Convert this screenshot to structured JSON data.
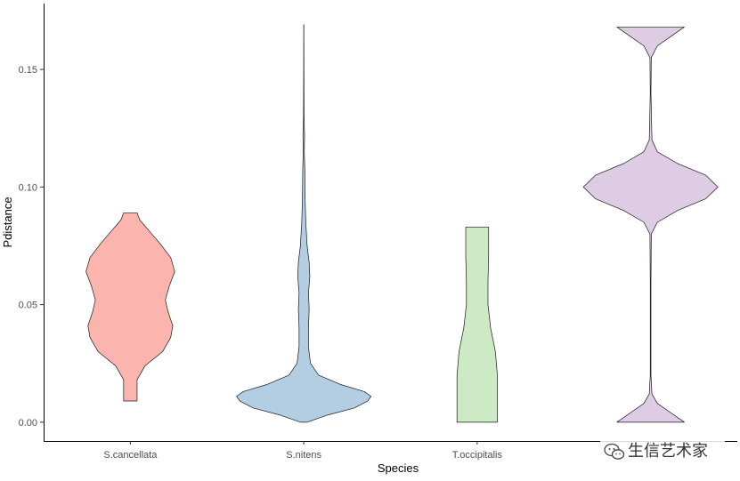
{
  "chart_data": {
    "type": "violin",
    "title": "",
    "xlabel": "Species",
    "ylabel": "Pdistance",
    "ylim": [
      -0.008,
      0.178
    ],
    "yticks": [
      0.0,
      0.05,
      0.1,
      0.15
    ],
    "ytick_labels": [
      "0.00",
      "0.05",
      "0.10",
      "0.15"
    ],
    "grid": false,
    "legend": "none",
    "categories": [
      "S.cancellata",
      "S.nitens",
      "T.occipitalis",
      ""
    ],
    "series": [
      {
        "color": "#FBB4AE",
        "min": 0.009,
        "max": 0.089,
        "profile": [
          [
            0.009,
            0.1
          ],
          [
            0.018,
            0.1
          ],
          [
            0.024,
            0.22
          ],
          [
            0.03,
            0.48
          ],
          [
            0.036,
            0.6
          ],
          [
            0.041,
            0.63
          ],
          [
            0.047,
            0.56
          ],
          [
            0.052,
            0.52
          ],
          [
            0.058,
            0.58
          ],
          [
            0.064,
            0.66
          ],
          [
            0.07,
            0.6
          ],
          [
            0.076,
            0.44
          ],
          [
            0.082,
            0.26
          ],
          [
            0.086,
            0.14
          ],
          [
            0.089,
            0.1
          ]
        ]
      },
      {
        "color": "#B3CDE3",
        "min": 0.0,
        "max": 0.169,
        "profile": [
          [
            0.0,
            0.05
          ],
          [
            0.003,
            0.35
          ],
          [
            0.006,
            0.75
          ],
          [
            0.009,
            0.95
          ],
          [
            0.011,
            1.0
          ],
          [
            0.013,
            0.9
          ],
          [
            0.016,
            0.55
          ],
          [
            0.02,
            0.22
          ],
          [
            0.025,
            0.1
          ],
          [
            0.032,
            0.07
          ],
          [
            0.04,
            0.07
          ],
          [
            0.048,
            0.08
          ],
          [
            0.055,
            0.07
          ],
          [
            0.062,
            0.09
          ],
          [
            0.068,
            0.08
          ],
          [
            0.075,
            0.05
          ],
          [
            0.085,
            0.03
          ],
          [
            0.095,
            0.02
          ],
          [
            0.108,
            0.015
          ],
          [
            0.115,
            0.008
          ],
          [
            0.122,
            0.012
          ],
          [
            0.13,
            0.004
          ],
          [
            0.15,
            0.002
          ],
          [
            0.169,
            0.001
          ]
        ]
      },
      {
        "color": "#CCEBC5",
        "min": 0.0,
        "max": 0.083,
        "profile": [
          [
            0.0,
            0.3
          ],
          [
            0.005,
            0.3
          ],
          [
            0.013,
            0.3
          ],
          [
            0.02,
            0.3
          ],
          [
            0.03,
            0.27
          ],
          [
            0.04,
            0.2
          ],
          [
            0.05,
            0.16
          ],
          [
            0.06,
            0.16
          ],
          [
            0.07,
            0.17
          ],
          [
            0.078,
            0.17
          ],
          [
            0.083,
            0.17
          ]
        ]
      },
      {
        "color": "#DECBE4",
        "min": 0.0,
        "max": 0.168,
        "profile": [
          [
            0.0,
            0.5
          ],
          [
            0.004,
            0.3
          ],
          [
            0.008,
            0.1
          ],
          [
            0.012,
            0.02
          ],
          [
            0.02,
            0.005
          ],
          [
            0.06,
            0.005
          ],
          [
            0.08,
            0.01
          ],
          [
            0.085,
            0.1
          ],
          [
            0.09,
            0.4
          ],
          [
            0.095,
            0.82
          ],
          [
            0.1,
            1.0
          ],
          [
            0.105,
            0.82
          ],
          [
            0.11,
            0.4
          ],
          [
            0.115,
            0.1
          ],
          [
            0.12,
            0.02
          ],
          [
            0.14,
            0.005
          ],
          [
            0.155,
            0.01
          ],
          [
            0.16,
            0.1
          ],
          [
            0.164,
            0.3
          ],
          [
            0.168,
            0.5
          ]
        ]
      }
    ]
  },
  "watermark": {
    "icon": "wechat-icon",
    "text": "生信艺术家"
  }
}
